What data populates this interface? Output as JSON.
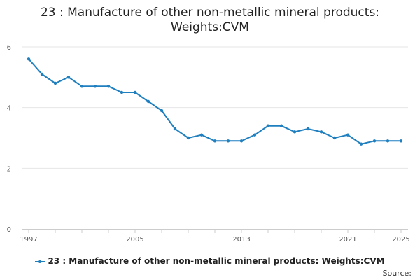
{
  "chart_data": {
    "type": "line",
    "title_lines": [
      "23 : Manufacture of other non-metallic mineral products:",
      "Weights:CVM"
    ],
    "xlabel": "",
    "ylabel": "",
    "xlim": [
      1997,
      2025
    ],
    "ylim": [
      0,
      6
    ],
    "y_ticks": [
      0,
      2,
      4,
      6
    ],
    "x_tick_labels": [
      "1997",
      "2005",
      "2013",
      "2021",
      "2025"
    ],
    "x_tick_values": [
      1997,
      2005,
      2013,
      2021,
      2025
    ],
    "grid": "horizontal",
    "legend_placement": "bottom-center",
    "series": [
      {
        "name": "23 : Manufacture of other non-metallic mineral products: Weights:CVM",
        "color": "#1f7fbf",
        "x": [
          1997,
          1998,
          1999,
          2000,
          2001,
          2002,
          2003,
          2004,
          2005,
          2006,
          2007,
          2008,
          2009,
          2010,
          2011,
          2012,
          2013,
          2014,
          2015,
          2016,
          2017,
          2018,
          2019,
          2020,
          2021,
          2022,
          2023,
          2024,
          2025
        ],
        "values": [
          5.6,
          5.1,
          4.8,
          5.0,
          4.7,
          4.7,
          4.7,
          4.5,
          4.5,
          4.2,
          3.9,
          3.3,
          3.0,
          3.1,
          2.9,
          2.9,
          2.9,
          3.1,
          3.4,
          3.4,
          3.2,
          3.3,
          3.2,
          3.0,
          3.1,
          2.8,
          2.9,
          2.9,
          2.9
        ]
      }
    ]
  },
  "legend": {
    "label": "23 : Manufacture of other non-metallic mineral products: Weights:CVM"
  },
  "source_label": "Source:"
}
